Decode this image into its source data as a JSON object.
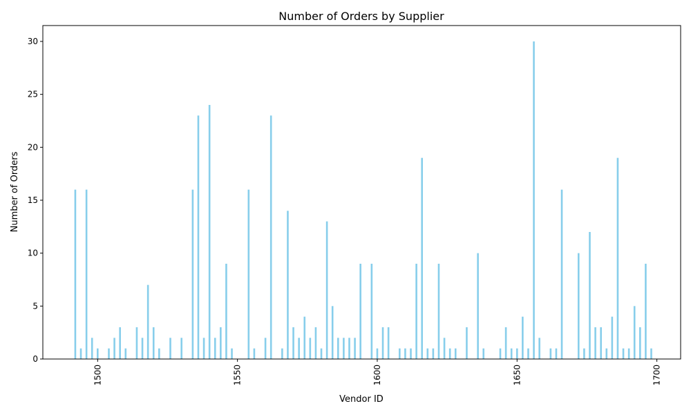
{
  "chart_data": {
    "type": "bar",
    "title": "Number of Orders by Supplier",
    "xlabel": "Vendor ID",
    "ylabel": "Number of Orders",
    "xlim": [
      1480.4,
      1708.5
    ],
    "ylim": [
      0,
      31.5
    ],
    "xticks": [
      1500,
      1550,
      1600,
      1650,
      1700
    ],
    "yticks": [
      0,
      5,
      10,
      15,
      20,
      25,
      30
    ],
    "xtick_rotation": 90,
    "bar_color": "#87ceeb",
    "grid": false,
    "legend": "none",
    "x": [
      1492,
      1494,
      1496,
      1498,
      1500,
      1504,
      1506,
      1508,
      1510,
      1514,
      1516,
      1518,
      1520,
      1522,
      1526,
      1530,
      1534,
      1536,
      1538,
      1540,
      1542,
      1544,
      1546,
      1548,
      1554,
      1556,
      1560,
      1562,
      1566,
      1568,
      1570,
      1572,
      1574,
      1576,
      1578,
      1580,
      1582,
      1584,
      1586,
      1588,
      1590,
      1592,
      1594,
      1598,
      1600,
      1602,
      1604,
      1608,
      1610,
      1612,
      1614,
      1616,
      1618,
      1620,
      1622,
      1624,
      1626,
      1628,
      1632,
      1636,
      1638,
      1644,
      1646,
      1648,
      1650,
      1652,
      1654,
      1656,
      1658,
      1662,
      1664,
      1666,
      1672,
      1674,
      1676,
      1678,
      1680,
      1682,
      1684,
      1686,
      1688,
      1690,
      1692,
      1694,
      1696,
      1698
    ],
    "values": [
      16,
      1,
      16,
      2,
      1,
      1,
      2,
      3,
      1,
      3,
      2,
      7,
      3,
      1,
      2,
      2,
      16,
      23,
      2,
      24,
      2,
      3,
      9,
      1,
      16,
      1,
      2,
      23,
      1,
      14,
      3,
      2,
      4,
      2,
      3,
      1,
      13,
      5,
      2,
      2,
      2,
      2,
      9,
      9,
      1,
      3,
      3,
      1,
      1,
      1,
      9,
      19,
      1,
      1,
      9,
      2,
      1,
      1,
      3,
      10,
      1,
      1,
      3,
      1,
      1,
      4,
      1,
      30,
      2,
      1,
      1,
      16,
      10,
      1,
      12,
      3,
      3,
      1,
      4,
      19,
      1,
      1,
      5,
      3,
      9,
      1
    ]
  }
}
